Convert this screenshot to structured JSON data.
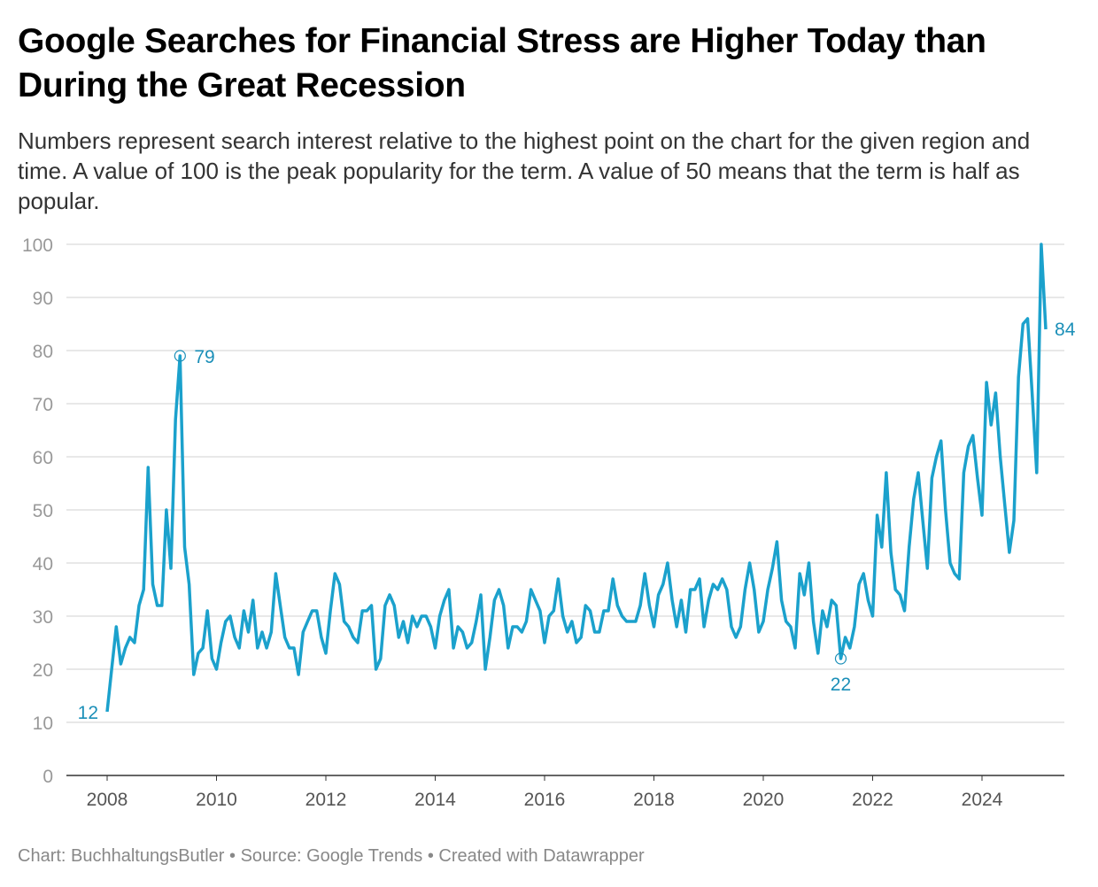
{
  "chart_data": {
    "type": "line",
    "title": "Google Searches for Financial Stress are Higher Today than During the Great Recession",
    "subtitle": "Numbers represent search interest relative to the highest point on the chart for the given region and time. A value of 100 is the peak popularity for the term. A value of 50 means that the term is half as popular.",
    "footer": "Chart: BuchhaltungsButler • Source: Google Trends • Created with Datawrapper",
    "xlabel": "",
    "ylabel": "",
    "ylim": [
      0,
      100
    ],
    "yticks": [
      "0",
      "10",
      "20",
      "30",
      "40",
      "50",
      "60",
      "70",
      "80",
      "90",
      "100"
    ],
    "xticks": [
      "2008",
      "2010",
      "2012",
      "2014",
      "2016",
      "2018",
      "2020",
      "2022",
      "2024"
    ],
    "grid": true,
    "line_color": "#1ba1cc",
    "annotation_color": "#1b8fb8",
    "annotations": [
      {
        "x": "2008-01",
        "label": "12",
        "marker": false
      },
      {
        "x": "2009-05",
        "label": "79",
        "marker": true
      },
      {
        "x": "2021-06",
        "label": "22",
        "marker": true
      },
      {
        "x": "2025-03",
        "label": "84",
        "marker": false
      }
    ],
    "series": [
      {
        "values": [
          12,
          20,
          28,
          21,
          24,
          26,
          25,
          32,
          35,
          58,
          36,
          32,
          32,
          50,
          39,
          67,
          79,
          43,
          36,
          19,
          23,
          24,
          31,
          22,
          20,
          25,
          29,
          30,
          26,
          24,
          31,
          27,
          33,
          24,
          27,
          24,
          27,
          38,
          32,
          26,
          24,
          24,
          19,
          27,
          29,
          31,
          31,
          26,
          23,
          31,
          38,
          36,
          29,
          28,
          26,
          25,
          31,
          31,
          32,
          20,
          22,
          32,
          34,
          32,
          26,
          29,
          25,
          30,
          28,
          30,
          30,
          28,
          24,
          30,
          33,
          35,
          24,
          28,
          27,
          24,
          25,
          29,
          34,
          20,
          26,
          33,
          35,
          32,
          24,
          28,
          28,
          27,
          29,
          35,
          33,
          31,
          25,
          30,
          31,
          37,
          30,
          27,
          29,
          25,
          26,
          32,
          31,
          27,
          27,
          31,
          31,
          37,
          32,
          30,
          29,
          29,
          29,
          32,
          38,
          32,
          28,
          34,
          36,
          40,
          33,
          28,
          33,
          27,
          35,
          35,
          37,
          28,
          33,
          36,
          35,
          37,
          35,
          28,
          26,
          28,
          35,
          40,
          35,
          27,
          29,
          35,
          39,
          44,
          33,
          29,
          28,
          24,
          38,
          34,
          40,
          29,
          23,
          31,
          28,
          33,
          32,
          22,
          26,
          24,
          28,
          36,
          38,
          33,
          30,
          49,
          43,
          57,
          42,
          35,
          34,
          31,
          43,
          52,
          57,
          48,
          39,
          56,
          60,
          63,
          50,
          40,
          38,
          37,
          57,
          62,
          64,
          56,
          49,
          74,
          66,
          72,
          60,
          51,
          42,
          48,
          75,
          85,
          86,
          72,
          57,
          100,
          84
        ]
      }
    ]
  }
}
